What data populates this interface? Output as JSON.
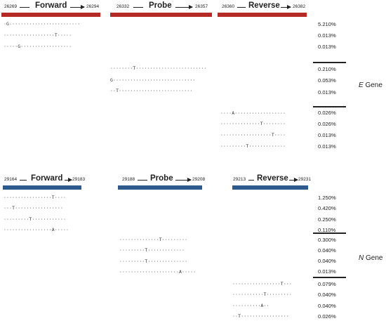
{
  "colors": {
    "e_gene": "#b52a25",
    "n_gene": "#2d5a8c"
  },
  "e_gene": {
    "label_italic": "E",
    "label_rest": " Gene",
    "forward": {
      "label": "Forward",
      "start": "26269",
      "end": "26294"
    },
    "probe": {
      "label": "Probe",
      "start": "26332",
      "end": "26357"
    },
    "reverse": {
      "label": "Reverse",
      "start": "26360",
      "end": "26382"
    },
    "forward_seqs": [
      "·G·························",
      "··················T·····",
      "·····G··················"
    ],
    "forward_pcts": [
      "5.210%",
      "0.013%",
      "0.013%"
    ],
    "probe_seqs": [
      "········T·························",
      "G·····························",
      "··T··························"
    ],
    "probe_pcts": [
      "0.210%",
      "0.053%",
      "0.013%"
    ],
    "reverse_seqs": [
      "····A··················",
      "··············T········",
      "··················T····",
      "·········T·············"
    ],
    "reverse_pcts": [
      "0.026%",
      "0.026%",
      "0.013%",
      "0.013%"
    ]
  },
  "n_gene": {
    "label_italic": "N",
    "label_rest": " Gene",
    "forward": {
      "label": "Forward",
      "start": "29164",
      "end": "29183"
    },
    "probe": {
      "label": "Probe",
      "start": "29188",
      "end": "29208"
    },
    "reverse": {
      "label": "Reverse",
      "start": "29213",
      "end": "29231"
    },
    "forward_seqs": [
      "·················T····",
      "···T·················",
      "·········T············",
      "·················A·····"
    ],
    "forward_pcts": [
      "1.250%",
      "0.420%",
      "0.250%",
      "0.110%"
    ],
    "probe_seqs": [
      "··············T·········",
      "·········T·············",
      "·········T··············",
      "·····················A·····"
    ],
    "probe_pcts": [
      "0.300%",
      "0.040%",
      "0.040%",
      "0.013%"
    ],
    "reverse_seqs": [
      "·················T···",
      "···········T·········",
      "··········A··",
      "··T·················"
    ],
    "reverse_pcts": [
      "0.079%",
      "0.040%",
      "0.040%",
      "0.026%"
    ]
  }
}
